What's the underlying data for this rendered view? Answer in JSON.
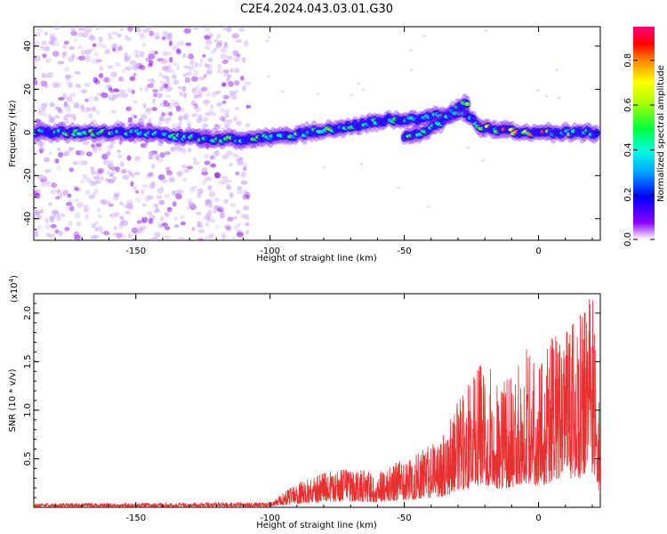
{
  "title": "C2E4.2024.043.03.01.G30",
  "chart_data": [
    {
      "type": "heatmap",
      "xlabel": "Height of straight line (km)",
      "ylabel": "Frequency (Hz)",
      "xlim": [
        -188,
        23
      ],
      "ylim": [
        -50,
        49
      ],
      "xticks": [
        -150,
        -100,
        -50,
        0
      ],
      "yticks": [
        -40,
        -20,
        0,
        20,
        40
      ],
      "colorbar": {
        "label": "Normalized spectral amplitude",
        "range": [
          0,
          0.95
        ],
        "ticks": [
          0.0,
          0.2,
          0.4,
          0.6,
          0.8
        ]
      },
      "ridges": [
        {
          "x": [
            -188,
            -150,
            -125,
            -110,
            -95,
            -80,
            -65,
            -55,
            -45,
            -35,
            -28,
            -22,
            -15,
            -5,
            5,
            15,
            22
          ],
          "y": [
            0,
            0,
            -3,
            -3,
            -2,
            1,
            4,
            6,
            6,
            8,
            10,
            3,
            1,
            0,
            0,
            0,
            0
          ]
        },
        {
          "x": [
            -50,
            -42,
            -35,
            -30,
            -26
          ],
          "y": [
            -2,
            0,
            6,
            11,
            14
          ]
        }
      ]
    },
    {
      "type": "line",
      "xlabel": "Height of straight line (km)",
      "ylabel": "SNR (10 * v/v)",
      "yscale_label": "(x10",
      "yscale_exp": "4",
      "xlim": [
        -188,
        23
      ],
      "ylim": [
        0,
        2.2
      ],
      "xticks": [
        -150,
        -100,
        -50,
        0
      ],
      "yticks": [
        0.5,
        1.0,
        1.5,
        2.0
      ],
      "line_color": "#e83030",
      "envelope": {
        "x": [
          -188,
          -100,
          -90,
          -80,
          -70,
          -60,
          -50,
          -45,
          -40,
          -35,
          -30,
          -25,
          -20,
          -15,
          -10,
          -5,
          0,
          5,
          10,
          15,
          20,
          23
        ],
        "y": [
          0.04,
          0.05,
          0.25,
          0.35,
          0.4,
          0.35,
          0.5,
          0.55,
          0.65,
          0.75,
          1.1,
          1.3,
          1.55,
          1.25,
          1.35,
          1.65,
          1.4,
          1.75,
          1.8,
          1.95,
          2.2,
          0.9
        ]
      }
    }
  ]
}
